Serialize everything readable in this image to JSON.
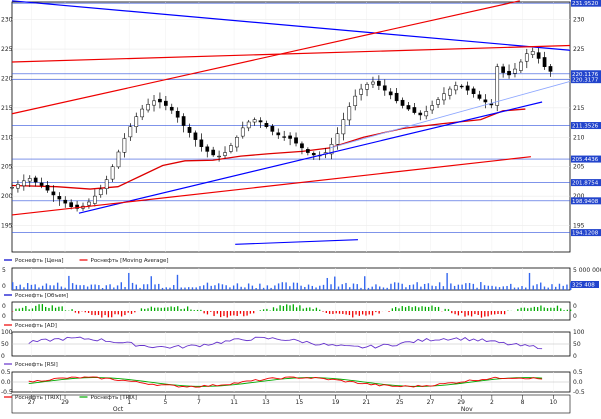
{
  "chart_data": [
    {
      "panel": "price",
      "type": "candlestick",
      "ylim": [
        190.5,
        233
      ],
      "y_ticks": [
        195,
        200,
        205,
        210,
        215,
        220,
        225,
        230
      ],
      "price_series": [
        201.5,
        202.0,
        202.6,
        203.0,
        202.4,
        201.8,
        201.0,
        200.2,
        199.5,
        198.8,
        198.2,
        197.9,
        198.3,
        199.0,
        200.0,
        201.2,
        202.8,
        205.0,
        207.5,
        209.8,
        211.8,
        213.5,
        214.8,
        215.6,
        216.2,
        216.0,
        215.4,
        214.6,
        213.4,
        212.0,
        210.8,
        209.6,
        208.4,
        207.6,
        207.0,
        206.8,
        207.4,
        208.6,
        210.0,
        211.6,
        212.6,
        213.0,
        212.6,
        211.8,
        211.0,
        210.4,
        210.1,
        209.8,
        209.0,
        208.2,
        207.4,
        207.0,
        206.9,
        207.4,
        208.8,
        210.6,
        213.0,
        215.2,
        217.0,
        218.2,
        219.0,
        219.4,
        218.8,
        218.0,
        217.2,
        216.2,
        215.4,
        214.8,
        214.2,
        213.8,
        214.4,
        215.4,
        216.4,
        217.4,
        218.2,
        218.8,
        218.6,
        218.0,
        217.4,
        216.6,
        216.0,
        215.5,
        222.0,
        221.0,
        220.6,
        221.6,
        222.8,
        224.2,
        224.6,
        223.4,
        222.0,
        221.2
      ],
      "moving_average": [
        [
          0,
          201.8
        ],
        [
          0.08,
          201.6
        ],
        [
          0.14,
          201.2
        ],
        [
          0.19,
          201.6
        ],
        [
          0.23,
          203.4
        ],
        [
          0.27,
          205.2
        ],
        [
          0.31,
          206.0
        ],
        [
          0.36,
          206.1
        ],
        [
          0.41,
          206.8
        ],
        [
          0.46,
          207.2
        ],
        [
          0.52,
          207.6
        ],
        [
          0.57,
          208.2
        ],
        [
          0.63,
          210.0
        ],
        [
          0.7,
          211.5
        ],
        [
          0.77,
          212.3
        ],
        [
          0.84,
          213.0
        ],
        [
          0.88,
          214.5
        ],
        [
          0.92,
          214.8
        ]
      ],
      "trend_lines": [
        {
          "color": "#0000ff",
          "points": [
            [
              0,
              233.2
            ],
            [
              1,
              224.8
            ]
          ]
        },
        {
          "color": "#0000ff",
          "points": [
            [
              0.12,
              197.1
            ],
            [
              0.95,
              216.0
            ]
          ]
        },
        {
          "color": "#ee0000",
          "points": [
            [
              0,
              222.8
            ],
            [
              1,
              225.6
            ]
          ]
        },
        {
          "color": "#ee0000",
          "points": [
            [
              0,
              214.0
            ],
            [
              0.91,
              233.2
            ]
          ]
        },
        {
          "color": "#ee0000",
          "points": [
            [
              0,
              196.8
            ],
            [
              0.93,
              206.7
            ]
          ]
        }
      ],
      "price_tags": [
        {
          "y": 232.8,
          "text": "231.9520"
        },
        {
          "y": 220.8,
          "text": "220.1176"
        },
        {
          "y": 219.8,
          "text": "220.3177"
        },
        {
          "y": 212.0,
          "text": "211.3526"
        },
        {
          "y": 206.3,
          "text": "205.4436"
        },
        {
          "y": 202.3,
          "text": "201.8754"
        },
        {
          "y": 199.2,
          "text": "198.9408"
        },
        {
          "y": 193.8,
          "text": "194.1208"
        }
      ],
      "legend": [
        {
          "label": "Роснефть [Цена]",
          "color": "#0000cc"
        },
        {
          "label": "Роснефть [Moving Average]",
          "color": "#ee0000"
        }
      ]
    },
    {
      "panel": "volume",
      "type": "bar",
      "y_ticks_right": [
        "5 000 000",
        "0"
      ],
      "y_ticks_left": [
        "5",
        "0"
      ],
      "price_tag": "325 408",
      "legend": [
        {
          "label": "Роснефть [Объем]",
          "color": "#0000cc"
        }
      ]
    },
    {
      "panel": "ad",
      "type": "bar",
      "y_ticks_right": [
        "0",
        "0"
      ],
      "y_ticks_left": [
        "0",
        "0"
      ],
      "legend": [
        {
          "label": "Роснефть [AD]",
          "color": "#ee0000"
        }
      ]
    },
    {
      "panel": "rsi",
      "type": "line",
      "y_ticks_right": [
        "100",
        "50",
        "0"
      ],
      "y_ticks_left": [
        "100",
        "50",
        "0"
      ],
      "legend": [
        {
          "label": "Роснефть [RSI]",
          "color": "#6633cc"
        }
      ]
    },
    {
      "panel": "trix",
      "type": "line",
      "y_ticks_right": [
        "0.5",
        "0.0",
        "-0.5"
      ],
      "y_ticks_left": [
        "0.5",
        "0.0",
        "-0.5"
      ],
      "legend": [
        {
          "label": "Роснефть [TRIX]",
          "color": "#ee0000"
        },
        {
          "label": "Роснефть [TRIX]",
          "color": "#00aa00"
        }
      ]
    }
  ],
  "x_axis": {
    "labels": [
      "27",
      "29",
      "1",
      "5",
      "7",
      "11",
      "13",
      "15",
      "19",
      "21",
      "25",
      "27",
      "29",
      "2",
      "8",
      "10"
    ],
    "label_positions": [
      0.035,
      0.095,
      0.21,
      0.275,
      0.335,
      0.398,
      0.455,
      0.515,
      0.58,
      0.635,
      0.695,
      0.75,
      0.805,
      0.86,
      0.915,
      0.97
    ],
    "month_labels": [
      "Oct",
      "Nov"
    ],
    "month_positions": [
      0.19,
      0.815
    ]
  }
}
